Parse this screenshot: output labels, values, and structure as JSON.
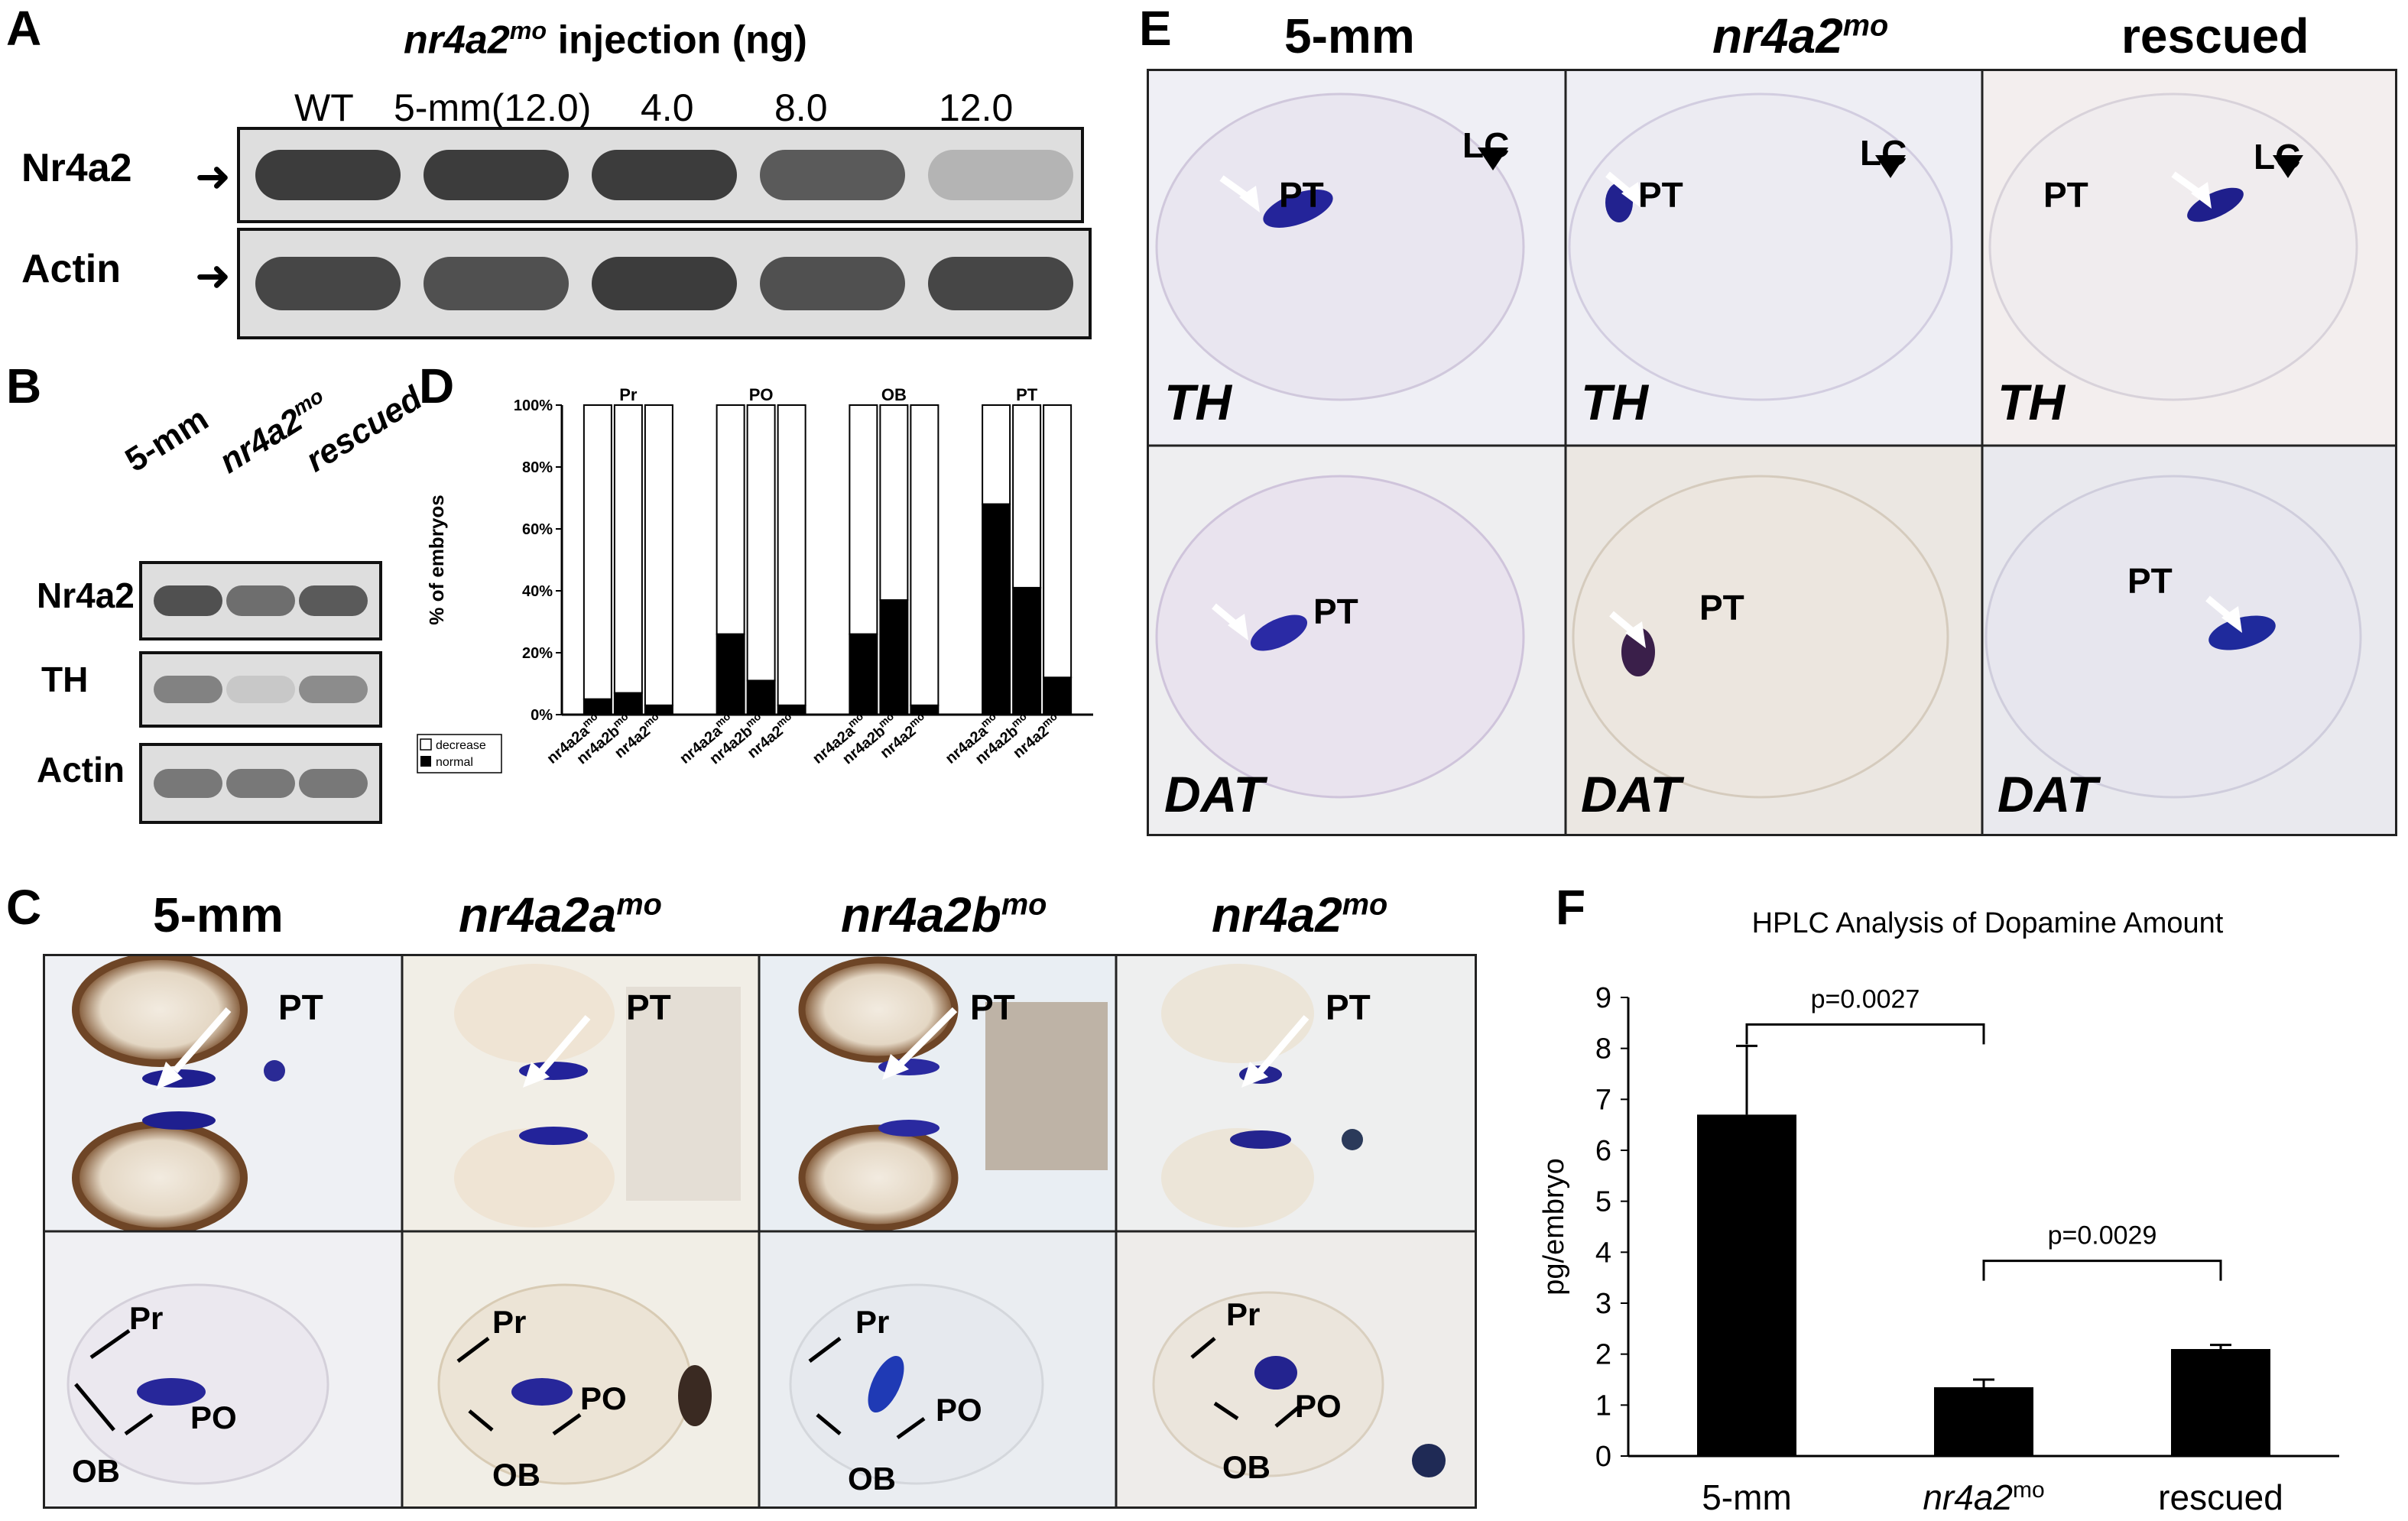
{
  "panel_letters": {
    "a": "A",
    "b": "B",
    "c": "C",
    "d": "D",
    "e": "E",
    "f": "F"
  },
  "panel_a": {
    "title_gene": "nr4a2",
    "title_sup": "mo",
    "title_rest": " injection (ng)",
    "lanes": [
      "WT",
      "5-mm(12.0)",
      "4.0",
      "8.0",
      "12.0"
    ],
    "rows": [
      "Nr4a2",
      "Actin"
    ],
    "nr4a2_intensity": [
      0.85,
      0.85,
      0.85,
      0.7,
      0.25
    ],
    "actin_intensity": [
      0.8,
      0.75,
      0.85,
      0.75,
      0.8
    ]
  },
  "panel_b": {
    "lanes": [
      "5-mm",
      "nr4a2",
      "rescued"
    ],
    "lane_sup": [
      "",
      "mo",
      ""
    ],
    "rows": [
      "Nr4a2",
      "TH",
      "Actin"
    ]
  },
  "panel_d": {
    "chart_data": {
      "type": "bar",
      "stacked": true,
      "ylabel": "% of embryos",
      "ylim": [
        0,
        100
      ],
      "yticks": [
        "0%",
        "20%",
        "40%",
        "60%",
        "80%",
        "100%"
      ],
      "groups": [
        "Pr",
        "PO",
        "OB",
        "PT"
      ],
      "categories_base": [
        "nr4a2a",
        "nr4a2b",
        "nr4a2"
      ],
      "categories_sup": "mo",
      "series": [
        {
          "name": "normal",
          "values": [
            5,
            7,
            3,
            26,
            11,
            3,
            26,
            37,
            3,
            68,
            41,
            12
          ]
        },
        {
          "name": "decrease",
          "values": [
            95,
            93,
            97,
            74,
            89,
            97,
            74,
            63,
            97,
            32,
            59,
            88
          ]
        }
      ],
      "legend": [
        "decrease",
        "normal"
      ],
      "legend_position": "bottom-left"
    }
  },
  "panel_c": {
    "columns": [
      {
        "gene": "5-mm",
        "sup": ""
      },
      {
        "gene": "nr4a2a",
        "sup": "mo"
      },
      {
        "gene": "nr4a2b",
        "sup": "mo"
      },
      {
        "gene": "nr4a2",
        "sup": "mo"
      }
    ],
    "labels": {
      "pt": "PT",
      "pr": "Pr",
      "po": "PO",
      "ob": "OB"
    }
  },
  "panel_e": {
    "columns": [
      {
        "gene": "5-mm",
        "sup": ""
      },
      {
        "gene": "nr4a2",
        "sup": "mo"
      },
      {
        "gene": "rescued",
        "sup": ""
      }
    ],
    "rows": [
      "TH",
      "DAT"
    ],
    "labels": {
      "pt": "PT",
      "lc": "LC"
    }
  },
  "panel_f": {
    "chart_data": {
      "type": "bar",
      "title": "HPLC Analysis of Dopamine Amount",
      "ylabel": "pg/embryo",
      "ylim": [
        0,
        9
      ],
      "yticks": [
        0,
        1,
        2,
        3,
        4,
        5,
        6,
        7,
        8,
        9
      ],
      "categories": [
        "5-mm",
        "nr4a2",
        "rescued"
      ],
      "category_sup": [
        "",
        "mo",
        ""
      ],
      "values": [
        6.7,
        1.35,
        2.1
      ],
      "errors": [
        1.35,
        0.15,
        0.08
      ],
      "annotations": [
        {
          "from": 0,
          "to": 1,
          "text": "p=0.0027"
        },
        {
          "from": 1,
          "to": 2,
          "text": "p=0.0029"
        }
      ]
    }
  }
}
